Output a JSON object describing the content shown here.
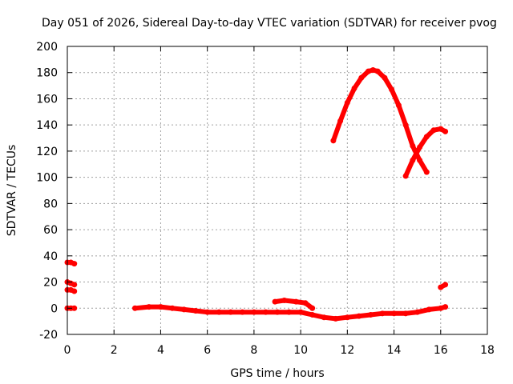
{
  "chart_data": {
    "type": "scatter",
    "title": "Day 051 of 2026, Sidereal Day-to-day VTEC variation (SDTVAR) for receiver pvog",
    "xlabel": "GPS time / hours",
    "ylabel": "SDTVAR / TECUs",
    "xlim": [
      0,
      18
    ],
    "ylim": [
      -20,
      200
    ],
    "xticks": [
      0,
      2,
      4,
      6,
      8,
      10,
      12,
      14,
      16,
      18
    ],
    "yticks": [
      -20,
      0,
      20,
      40,
      60,
      80,
      100,
      120,
      140,
      160,
      180,
      200
    ],
    "grid": true,
    "color": "#ff0000",
    "series": [
      {
        "name": "s1",
        "x": [
          0.0,
          0.15,
          0.3
        ],
        "y": [
          35,
          35,
          34
        ]
      },
      {
        "name": "s2",
        "x": [
          0.0,
          0.15,
          0.3
        ],
        "y": [
          20,
          19,
          18
        ]
      },
      {
        "name": "s3",
        "x": [
          0.0,
          0.15,
          0.3
        ],
        "y": [
          14,
          14,
          13
        ]
      },
      {
        "name": "s4",
        "x": [
          0.0,
          0.15,
          0.3
        ],
        "y": [
          0,
          0,
          0
        ]
      },
      {
        "name": "s5",
        "x": [
          2.9,
          3.5,
          4.0,
          4.5,
          5.0,
          5.5,
          6.0,
          6.5,
          7.0,
          7.5,
          8.0,
          8.5,
          9.0,
          9.5,
          10.0,
          10.5,
          11.0,
          11.5,
          12.0,
          12.5,
          13.0,
          13.5,
          14.0,
          14.5,
          15.0,
          15.5,
          16.0,
          16.2
        ],
        "y": [
          0,
          1,
          1,
          0,
          -1,
          -2,
          -3,
          -3,
          -3,
          -3,
          -3,
          -3,
          -3,
          -3,
          -3,
          -5,
          -7,
          -8,
          -7,
          -6,
          -5,
          -4,
          -4,
          -4,
          -3,
          -1,
          0,
          1
        ]
      },
      {
        "name": "s6",
        "x": [
          8.9,
          9.3,
          9.8,
          10.2,
          10.5
        ],
        "y": [
          5,
          6,
          5,
          4,
          0
        ]
      },
      {
        "name": "s7",
        "x": [
          11.4,
          11.7,
          12.0,
          12.3,
          12.6,
          12.9,
          13.1,
          13.3,
          13.6,
          13.9,
          14.2,
          14.5,
          14.8,
          15.1,
          15.4
        ],
        "y": [
          128,
          143,
          157,
          168,
          176,
          181,
          182,
          181,
          176,
          167,
          155,
          140,
          124,
          113,
          104
        ]
      },
      {
        "name": "s8",
        "x": [
          14.5,
          14.8,
          15.1,
          15.4,
          15.7,
          16.0,
          16.2
        ],
        "y": [
          101,
          113,
          123,
          131,
          136,
          137,
          135
        ]
      },
      {
        "name": "s9",
        "x": [
          16.0,
          16.2
        ],
        "y": [
          16,
          18
        ]
      }
    ]
  }
}
